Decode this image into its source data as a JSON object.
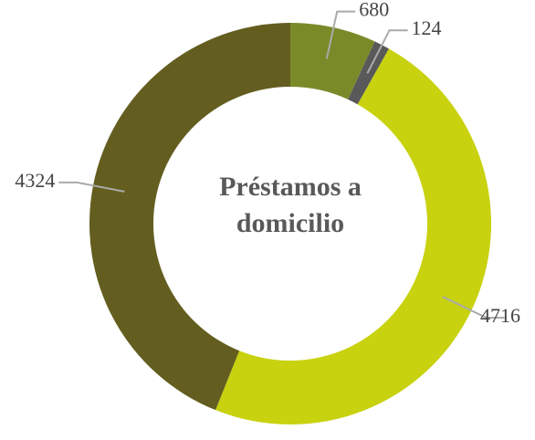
{
  "chart_data": {
    "type": "donut",
    "title": "Préstamos a domicilio",
    "categories": [
      null,
      null,
      null,
      null
    ],
    "values": [
      680,
      124,
      4716,
      4324
    ],
    "colors": [
      "#7b8a29",
      "#595959",
      "#c8d20f",
      "#635e1f"
    ]
  }
}
